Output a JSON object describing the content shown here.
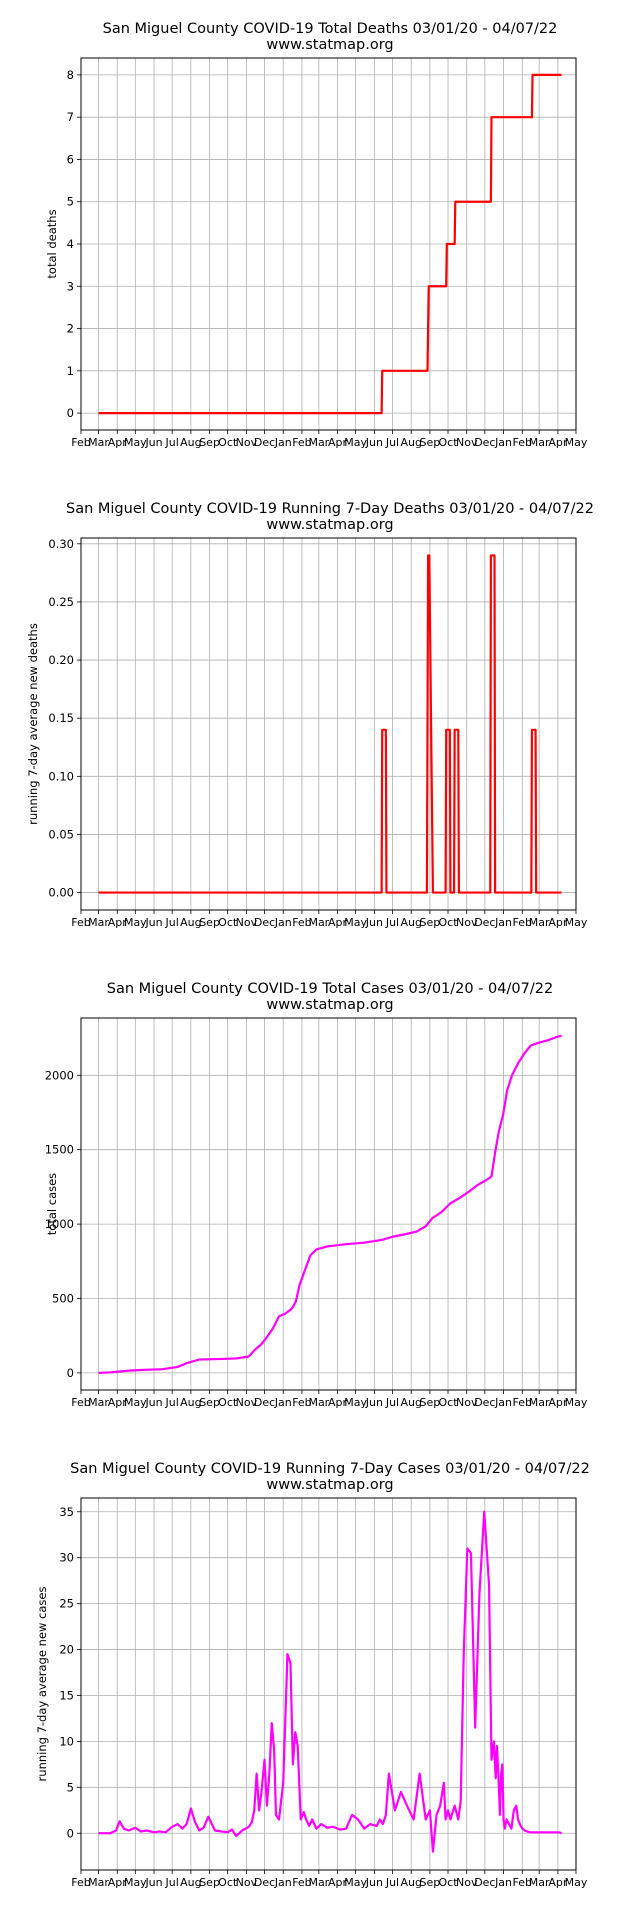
{
  "x_axis_months": [
    "Feb",
    "Mar",
    "Apr",
    "May",
    "Jun",
    "Jul",
    "Aug",
    "Sep",
    "Oct",
    "Nov",
    "Dec",
    "Jan",
    "Feb",
    "Mar",
    "Apr",
    "May",
    "Jun",
    "Jul",
    "Aug",
    "Sep",
    "Oct",
    "Nov",
    "Dec",
    "Jan",
    "Feb",
    "Mar",
    "Apr",
    "May"
  ],
  "chart_data": [
    {
      "type": "line",
      "title": "San Miguel County COVID-19 Total Deaths 03/01/20 - 04/07/22",
      "subtitle": "www.statmap.org",
      "xlabel": "",
      "ylabel": "total deaths",
      "x_range": [
        "2020-02-01",
        "2022-05-01"
      ],
      "ylim": [
        -0.4,
        8.4
      ],
      "yticks": [
        "0",
        "1",
        "2",
        "3",
        "4",
        "5",
        "6",
        "7",
        "8"
      ],
      "ytick_values": [
        0,
        1,
        2,
        3,
        4,
        5,
        6,
        7,
        8
      ],
      "grid": true,
      "color": "#ff0000",
      "line_style": "step",
      "series": [
        {
          "x": [
            "2020-03-01",
            "2021-06-13",
            "2021-06-14",
            "2021-08-28",
            "2021-08-29",
            "2021-08-30",
            "2021-09-28",
            "2021-09-29",
            "2021-10-12",
            "2021-10-13",
            "2021-12-11",
            "2021-12-12",
            "2022-02-17",
            "2022-02-18",
            "2022-04-07"
          ],
          "y": [
            0,
            0,
            1,
            1,
            2,
            3,
            3,
            4,
            4,
            5,
            5,
            7,
            7,
            8,
            8
          ]
        }
      ]
    },
    {
      "type": "line",
      "title": "San Miguel County COVID-19 Running 7-Day Deaths 03/01/20 - 04/07/22",
      "subtitle": "www.statmap.org",
      "xlabel": "",
      "ylabel": "running 7-day average new deaths",
      "x_range": [
        "2020-02-01",
        "2022-05-01"
      ],
      "ylim": [
        -0.015,
        0.305
      ],
      "yticks": [
        "0.00",
        "0.05",
        "0.10",
        "0.15",
        "0.20",
        "0.25",
        "0.30"
      ],
      "ytick_values": [
        0,
        0.05,
        0.1,
        0.15,
        0.2,
        0.25,
        0.3
      ],
      "grid": true,
      "color": "#ff0000",
      "line_style": "step",
      "series": [
        {
          "x": [
            "2020-03-01",
            "2021-06-13",
            "2021-06-14",
            "2021-06-20",
            "2021-06-21",
            "2021-08-27",
            "2021-08-28",
            "2021-08-29",
            "2021-08-31",
            "2021-09-03",
            "2021-09-06",
            "2021-09-27",
            "2021-09-28",
            "2021-10-04",
            "2021-10-05",
            "2021-10-11",
            "2021-10-12",
            "2021-10-18",
            "2021-10-19",
            "2021-12-10",
            "2021-12-11",
            "2021-12-17",
            "2021-12-18",
            "2022-02-16",
            "2022-02-17",
            "2022-02-23",
            "2022-02-24",
            "2022-04-07"
          ],
          "y": [
            0,
            0,
            0.14,
            0.14,
            0,
            0,
            0.14,
            0.29,
            0.29,
            0.14,
            0,
            0,
            0.14,
            0.14,
            0,
            0,
            0.14,
            0.14,
            0,
            0,
            0.29,
            0.29,
            0,
            0,
            0.14,
            0.14,
            0,
            0
          ]
        }
      ]
    },
    {
      "type": "line",
      "title": "San Miguel County COVID-19 Total Cases 03/01/20 - 04/07/22",
      "subtitle": "www.statmap.org",
      "xlabel": "",
      "ylabel": "total cases",
      "x_range": [
        "2020-02-01",
        "2022-05-01"
      ],
      "ylim": [
        -115,
        2385
      ],
      "yticks": [
        "0",
        "500",
        "1000",
        "1500",
        "2000"
      ],
      "ytick_values": [
        0,
        500,
        1000,
        1500,
        2000
      ],
      "grid": true,
      "color": "#ff00ff",
      "line_style": "line",
      "series": [
        {
          "x": [
            "2020-03-01",
            "2020-03-20",
            "2020-04-01",
            "2020-04-20",
            "2020-05-15",
            "2020-06-15",
            "2020-07-10",
            "2020-07-25",
            "2020-08-15",
            "2020-09-15",
            "2020-10-15",
            "2020-11-05",
            "2020-11-15",
            "2020-11-25",
            "2020-12-05",
            "2020-12-15",
            "2020-12-25",
            "2021-01-05",
            "2021-01-15",
            "2021-01-22",
            "2021-01-28",
            "2021-02-05",
            "2021-02-15",
            "2021-02-25",
            "2021-03-15",
            "2021-04-15",
            "2021-05-15",
            "2021-06-15",
            "2021-07-01",
            "2021-07-20",
            "2021-08-10",
            "2021-08-25",
            "2021-09-05",
            "2021-09-20",
            "2021-10-05",
            "2021-10-20",
            "2021-11-05",
            "2021-11-20",
            "2021-12-05",
            "2021-12-12",
            "2021-12-18",
            "2021-12-24",
            "2021-12-31",
            "2022-01-07",
            "2022-01-15",
            "2022-01-25",
            "2022-02-05",
            "2022-02-15",
            "2022-03-01",
            "2022-03-15",
            "2022-04-01",
            "2022-04-07"
          ],
          "y": [
            0,
            3,
            8,
            15,
            20,
            25,
            40,
            65,
            90,
            93,
            97,
            110,
            155,
            190,
            240,
            300,
            380,
            400,
            430,
            480,
            590,
            680,
            790,
            830,
            850,
            865,
            875,
            895,
            915,
            930,
            950,
            985,
            1040,
            1080,
            1140,
            1175,
            1220,
            1265,
            1300,
            1320,
            1480,
            1620,
            1730,
            1900,
            2000,
            2080,
            2150,
            2200,
            2220,
            2235,
            2260,
            2265
          ]
        }
      ]
    },
    {
      "type": "line",
      "title": "San Miguel County COVID-19 Running 7-Day Cases 03/01/20 - 04/07/22",
      "subtitle": "www.statmap.org",
      "xlabel": "",
      "ylabel": "running 7-day average new cases",
      "x_range": [
        "2020-02-01",
        "2022-05-01"
      ],
      "ylim": [
        -4,
        36.5
      ],
      "yticks": [
        "0",
        "5",
        "10",
        "15",
        "20",
        "25",
        "30",
        "35"
      ],
      "ytick_values": [
        0,
        5,
        10,
        15,
        20,
        25,
        30,
        35
      ],
      "grid": true,
      "color": "#ff00ff",
      "line_style": "line",
      "series": [
        {
          "x": [
            "2020-03-01",
            "2020-03-20",
            "2020-03-30",
            "2020-04-05",
            "2020-04-12",
            "2020-04-20",
            "2020-05-01",
            "2020-05-10",
            "2020-05-20",
            "2020-06-01",
            "2020-06-10",
            "2020-06-20",
            "2020-07-01",
            "2020-07-10",
            "2020-07-18",
            "2020-07-25",
            "2020-08-01",
            "2020-08-08",
            "2020-08-15",
            "2020-08-22",
            "2020-08-30",
            "2020-09-10",
            "2020-09-20",
            "2020-10-01",
            "2020-10-08",
            "2020-10-15",
            "2020-10-25",
            "2020-11-05",
            "2020-11-10",
            "2020-11-14",
            "2020-11-18",
            "2020-11-22",
            "2020-11-26",
            "2020-12-01",
            "2020-12-05",
            "2020-12-09",
            "2020-12-13",
            "2020-12-17",
            "2020-12-20",
            "2020-12-25",
            "2021-01-01",
            "2021-01-08",
            "2021-01-13",
            "2021-01-17",
            "2021-01-21",
            "2021-01-25",
            "2021-01-30",
            "2021-02-04",
            "2021-02-08",
            "2021-02-13",
            "2021-02-18",
            "2021-02-25",
            "2021-03-05",
            "2021-03-15",
            "2021-03-25",
            "2021-04-05",
            "2021-04-15",
            "2021-04-25",
            "2021-05-05",
            "2021-05-15",
            "2021-05-25",
            "2021-06-05",
            "2021-06-10",
            "2021-06-15",
            "2021-06-20",
            "2021-06-25",
            "2021-07-05",
            "2021-07-15",
            "2021-07-25",
            "2021-08-05",
            "2021-08-15",
            "2021-08-25",
            "2021-09-01",
            "2021-09-06",
            "2021-09-12",
            "2021-09-18",
            "2021-09-24",
            "2021-09-27",
            "2021-10-01",
            "2021-10-05",
            "2021-10-12",
            "2021-10-18",
            "2021-10-22",
            "2021-10-27",
            "2021-11-02",
            "2021-11-08",
            "2021-11-15",
            "2021-11-22",
            "2021-11-30",
            "2021-12-08",
            "2021-12-12",
            "2021-12-16",
            "2021-12-19",
            "2021-12-21",
            "2021-12-24",
            "2021-12-26",
            "2021-12-28",
            "2021-12-30",
            "2022-01-01",
            "2022-01-03",
            "2022-01-06",
            "2022-01-10",
            "2022-01-14",
            "2022-01-18",
            "2022-01-22",
            "2022-01-25",
            "2022-01-28",
            "2022-02-01",
            "2022-02-05",
            "2022-02-09",
            "2022-02-14",
            "2022-02-20",
            "2022-02-26",
            "2022-03-04",
            "2022-03-10",
            "2022-03-16",
            "2022-03-22",
            "2022-03-28",
            "2022-04-03",
            "2022-04-07"
          ],
          "y": [
            0,
            0,
            0.3,
            1.3,
            0.5,
            0.3,
            0.6,
            0.2,
            0.3,
            0.1,
            0.2,
            0.1,
            0.7,
            1.0,
            0.5,
            1.0,
            2.7,
            1.2,
            0.3,
            0.6,
            1.8,
            0.3,
            0.2,
            0.1,
            0.4,
            -0.3,
            0.3,
            0.7,
            1.2,
            2.5,
            6.5,
            2.5,
            4.5,
            8.0,
            3.0,
            6.5,
            12.0,
            9.0,
            2.0,
            1.5,
            5.5,
            19.5,
            18.5,
            7.5,
            11.0,
            9.5,
            1.5,
            2.3,
            1.5,
            0.8,
            1.5,
            0.5,
            1.0,
            0.6,
            0.7,
            0.4,
            0.5,
            2.0,
            1.5,
            0.5,
            1.0,
            0.8,
            1.5,
            1.0,
            2.0,
            6.5,
            2.5,
            4.5,
            3.0,
            1.5,
            6.5,
            1.5,
            2.5,
            -2.0,
            2.0,
            3.0,
            5.5,
            1.5,
            2.5,
            1.5,
            3.0,
            1.5,
            3.5,
            19.5,
            31.0,
            30.5,
            11.5,
            26.0,
            35.0,
            27.0,
            8.0,
            10.0,
            6.0,
            9.5,
            5.5,
            2.0,
            6.5,
            7.5,
            1.5,
            0.5,
            1.5,
            1.0,
            0.5,
            2.5,
            3.0,
            1.5,
            1.0,
            0.5,
            0.3,
            0.2,
            0.1,
            0.1,
            0.1,
            0.1,
            0.1,
            0.1,
            0.1,
            0.1,
            0.1,
            0.0
          ]
        }
      ]
    }
  ]
}
